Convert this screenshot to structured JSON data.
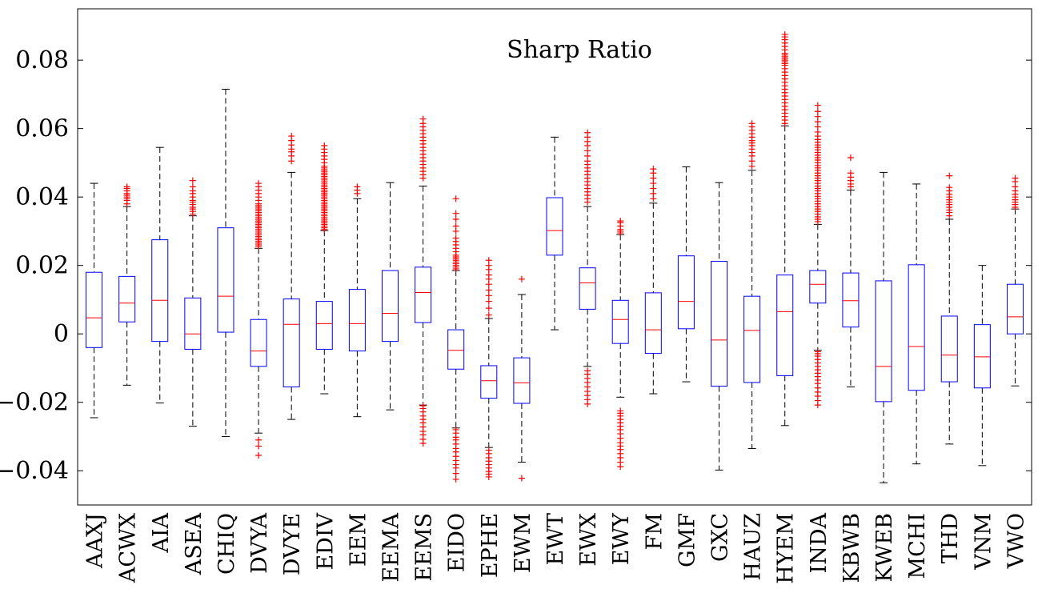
{
  "chart_data": {
    "type": "boxplot",
    "title": "Sharp Ratio",
    "xlabel": "",
    "ylabel": "",
    "ylim": [
      -0.05,
      0.095
    ],
    "yticks": [
      {
        "value": -0.04,
        "label": "−0.04"
      },
      {
        "value": -0.02,
        "label": "−0.02"
      },
      {
        "value": 0,
        "label": "0"
      },
      {
        "value": 0.02,
        "label": "0.02"
      },
      {
        "value": 0.04,
        "label": "0.04"
      },
      {
        "value": 0.06,
        "label": "0.06"
      },
      {
        "value": 0.08,
        "label": "0.08"
      }
    ],
    "colors": {
      "box": "#0000ff",
      "median": "#ff0000",
      "whisker": "#000000",
      "outlier": "#ff0000",
      "axis": "#000000"
    },
    "categories": [
      "AAXJ",
      "ACWX",
      "AIA",
      "ASEA",
      "CHIQ",
      "DVYA",
      "DVYE",
      "EDIV",
      "EEM",
      "EEMA",
      "EEMS",
      "EIDO",
      "EPHE",
      "EWM",
      "EWT",
      "EWX",
      "EWY",
      "FM",
      "GMF",
      "GXC",
      "HAUZ",
      "HYEM",
      "INDA",
      "KBWB",
      "KWEB",
      "MCHI",
      "THD",
      "VNM",
      "VWO"
    ],
    "boxes": [
      {
        "name": "AAXJ",
        "whislo": -0.0245,
        "q1": -0.004,
        "med": 0.0047,
        "q3": 0.018,
        "whishi": 0.044,
        "outliers": []
      },
      {
        "name": "ACWX",
        "whislo": -0.015,
        "q1": 0.0035,
        "med": 0.009,
        "q3": 0.0168,
        "whishi": 0.0372,
        "outliers": [
          0.038,
          0.039,
          0.0395,
          0.04,
          0.0405,
          0.041,
          0.0418,
          0.0425,
          0.043
        ]
      },
      {
        "name": "AIA",
        "whislo": -0.0202,
        "q1": -0.0022,
        "med": 0.0098,
        "q3": 0.0275,
        "whishi": 0.0545,
        "outliers": []
      },
      {
        "name": "ASEA",
        "whislo": -0.027,
        "q1": -0.0045,
        "med": 0.0,
        "q3": 0.0105,
        "whishi": 0.0345,
        "outliers": [
          0.035,
          0.0358,
          0.0365,
          0.037,
          0.0378,
          0.0385,
          0.039,
          0.04,
          0.041,
          0.0418,
          0.043,
          0.0448
        ]
      },
      {
        "name": "CHIQ",
        "whislo": -0.03,
        "q1": 0.0005,
        "med": 0.011,
        "q3": 0.031,
        "whishi": 0.0715,
        "outliers": []
      },
      {
        "name": "DVYA",
        "whislo": -0.029,
        "q1": -0.0095,
        "med": -0.005,
        "q3": 0.0042,
        "whishi": 0.025,
        "outliers": [
          -0.0355,
          -0.0328,
          -0.031,
          0.0255,
          0.026,
          0.0265,
          0.027,
          0.0275,
          0.028,
          0.0285,
          0.029,
          0.0295,
          0.03,
          0.0305,
          0.031,
          0.0315,
          0.032,
          0.0325,
          0.033,
          0.0335,
          0.034,
          0.0345,
          0.035,
          0.0355,
          0.036,
          0.0365,
          0.037,
          0.0375,
          0.038,
          0.039,
          0.04,
          0.041,
          0.042,
          0.043,
          0.044
        ]
      },
      {
        "name": "DVYE",
        "whislo": -0.025,
        "q1": -0.0155,
        "med": 0.0028,
        "q3": 0.0102,
        "whishi": 0.0472,
        "outliers": [
          0.0505,
          0.052,
          0.0532,
          0.054,
          0.0552,
          0.0565,
          0.0578
        ]
      },
      {
        "name": "EDIV",
        "whislo": -0.0175,
        "q1": -0.0045,
        "med": 0.003,
        "q3": 0.0095,
        "whishi": 0.0302,
        "outliers": [
          0.0305,
          0.031,
          0.0315,
          0.032,
          0.0325,
          0.033,
          0.0335,
          0.034,
          0.0345,
          0.035,
          0.0355,
          0.036,
          0.0365,
          0.037,
          0.0375,
          0.038,
          0.0385,
          0.039,
          0.0395,
          0.04,
          0.0405,
          0.041,
          0.0415,
          0.042,
          0.0425,
          0.043,
          0.0435,
          0.044,
          0.0445,
          0.045,
          0.0455,
          0.046,
          0.0465,
          0.047,
          0.0475,
          0.048,
          0.0485,
          0.049,
          0.05,
          0.051,
          0.052,
          0.053,
          0.054,
          0.055
        ]
      },
      {
        "name": "EEM",
        "whislo": -0.0242,
        "q1": -0.005,
        "med": 0.003,
        "q3": 0.013,
        "whishi": 0.0395,
        "outliers": [
          0.041,
          0.042,
          0.043
        ]
      },
      {
        "name": "EEMA",
        "whislo": -0.0222,
        "q1": -0.0022,
        "med": 0.006,
        "q3": 0.0185,
        "whishi": 0.0442,
        "outliers": []
      },
      {
        "name": "EEMS",
        "whislo": -0.0208,
        "q1": 0.0033,
        "med": 0.0121,
        "q3": 0.0195,
        "whishi": 0.0432,
        "outliers": [
          -0.032,
          -0.0308,
          -0.0295,
          -0.0285,
          -0.0272,
          -0.026,
          -0.025,
          -0.024,
          -0.0228,
          -0.0218,
          -0.021,
          0.0455,
          0.0465,
          0.0475,
          0.0485,
          0.0495,
          0.0505,
          0.0515,
          0.0525,
          0.0535,
          0.0545,
          0.0555,
          0.0565,
          0.0575,
          0.0585,
          0.0595,
          0.0605,
          0.0615,
          0.0628
        ]
      },
      {
        "name": "EIDO",
        "whislo": -0.0275,
        "q1": -0.0103,
        "med": -0.0048,
        "q3": 0.0012,
        "whishi": 0.0185,
        "outliers": [
          -0.0425,
          -0.0408,
          -0.0392,
          -0.0382,
          -0.037,
          -0.0358,
          -0.0345,
          -0.0335,
          -0.0322,
          -0.031,
          -0.0302,
          -0.029,
          -0.028,
          0.019,
          0.0195,
          0.02,
          0.0205,
          0.021,
          0.0215,
          0.022,
          0.0225,
          0.023,
          0.024,
          0.025,
          0.026,
          0.027,
          0.028,
          0.03,
          0.0315,
          0.0335,
          0.0352,
          0.0395
        ]
      },
      {
        "name": "EPHE",
        "whislo": -0.0332,
        "q1": -0.0188,
        "med": -0.0137,
        "q3": -0.0093,
        "whishi": 0.0045,
        "outliers": [
          -0.0418,
          -0.041,
          -0.0402,
          -0.0392,
          -0.0382,
          -0.0372,
          -0.0362,
          -0.035,
          -0.034,
          0.0055,
          0.0075,
          0.0095,
          0.0112,
          0.0128,
          0.0145,
          0.016,
          0.0172,
          0.0188,
          0.02,
          0.0215
        ]
      },
      {
        "name": "EWM",
        "whislo": -0.0375,
        "q1": -0.0203,
        "med": -0.0143,
        "q3": -0.007,
        "whishi": 0.0115,
        "outliers": [
          -0.0422,
          0.016
        ]
      },
      {
        "name": "EWT",
        "whislo": 0.0012,
        "q1": 0.023,
        "med": 0.0302,
        "q3": 0.0398,
        "whishi": 0.0575,
        "outliers": []
      },
      {
        "name": "EWX",
        "whislo": -0.0095,
        "q1": 0.0072,
        "med": 0.0149,
        "q3": 0.0193,
        "whishi": 0.0372,
        "outliers": [
          -0.0205,
          -0.0192,
          -0.018,
          -0.0168,
          -0.0155,
          -0.0142,
          -0.013,
          -0.0118,
          -0.0108,
          0.0385,
          0.0395,
          0.0405,
          0.0415,
          0.0425,
          0.0435,
          0.0445,
          0.0455,
          0.0465,
          0.0475,
          0.0485,
          0.0495,
          0.0505,
          0.052,
          0.0535,
          0.055,
          0.0562,
          0.0575,
          0.0588
        ]
      },
      {
        "name": "EWY",
        "whislo": -0.0185,
        "q1": -0.0028,
        "med": 0.0042,
        "q3": 0.0098,
        "whishi": 0.029,
        "outliers": [
          -0.0388,
          -0.0375,
          -0.0362,
          -0.035,
          -0.0338,
          -0.0328,
          -0.0318,
          -0.0305,
          -0.0292,
          -0.028,
          -0.027,
          -0.026,
          -0.025,
          -0.024,
          -0.0232,
          -0.0225,
          0.0295,
          0.03,
          0.0305,
          0.0315,
          0.0325,
          0.033
        ]
      },
      {
        "name": "FM",
        "whislo": -0.0175,
        "q1": -0.0057,
        "med": 0.0012,
        "q3": 0.012,
        "whishi": 0.0382,
        "outliers": [
          0.0395,
          0.041,
          0.0425,
          0.044,
          0.0455,
          0.047,
          0.0482
        ]
      },
      {
        "name": "GMF",
        "whislo": -0.014,
        "q1": 0.0015,
        "med": 0.0095,
        "q3": 0.0228,
        "whishi": 0.0488,
        "outliers": []
      },
      {
        "name": "GXC",
        "whislo": -0.0398,
        "q1": -0.0153,
        "med": -0.0018,
        "q3": 0.0212,
        "whishi": 0.0442,
        "outliers": []
      },
      {
        "name": "HAUZ",
        "whislo": -0.0335,
        "q1": -0.0142,
        "med": 0.001,
        "q3": 0.011,
        "whishi": 0.0478,
        "outliers": [
          0.049,
          0.0505,
          0.052,
          0.053,
          0.054,
          0.055,
          0.0558,
          0.0565,
          0.0575,
          0.0585,
          0.0595,
          0.0605,
          0.0615
        ]
      },
      {
        "name": "HYEM",
        "whislo": -0.0268,
        "q1": -0.0122,
        "med": 0.0065,
        "q3": 0.0172,
        "whishi": 0.0608,
        "outliers": [
          0.0615,
          0.0625,
          0.0635,
          0.0645,
          0.0655,
          0.0665,
          0.0675,
          0.0685,
          0.0695,
          0.0705,
          0.0715,
          0.0725,
          0.0735,
          0.0745,
          0.0755,
          0.0765,
          0.0775,
          0.0785,
          0.079,
          0.0795,
          0.08,
          0.0805,
          0.081,
          0.0815,
          0.082,
          0.083,
          0.084,
          0.085,
          0.086,
          0.0868,
          0.0875
        ]
      },
      {
        "name": "INDA",
        "whislo": -0.0048,
        "q1": 0.009,
        "med": 0.0145,
        "q3": 0.0185,
        "whishi": 0.032,
        "outliers": [
          -0.0208,
          -0.0195,
          -0.0182,
          -0.017,
          -0.0158,
          -0.0145,
          -0.0135,
          -0.0125,
          -0.0115,
          -0.0105,
          -0.0095,
          -0.0085,
          -0.0075,
          -0.0065,
          -0.0058,
          -0.0052,
          0.0328,
          0.0335,
          0.0342,
          0.035,
          0.0358,
          0.0365,
          0.0372,
          0.038,
          0.0388,
          0.0395,
          0.0402,
          0.041,
          0.0418,
          0.0425,
          0.0432,
          0.044,
          0.0448,
          0.0455,
          0.0462,
          0.047,
          0.0478,
          0.0485,
          0.0492,
          0.05,
          0.0508,
          0.0515,
          0.0522,
          0.053,
          0.0538,
          0.0545,
          0.0552,
          0.056,
          0.0568,
          0.0578,
          0.059,
          0.0605,
          0.062,
          0.0635,
          0.065,
          0.0668
        ]
      },
      {
        "name": "KBWB",
        "whislo": -0.0155,
        "q1": 0.002,
        "med": 0.0097,
        "q3": 0.0178,
        "whishi": 0.042,
        "outliers": [
          0.043,
          0.0438,
          0.0448,
          0.0458,
          0.047,
          0.0515
        ]
      },
      {
        "name": "KWEB",
        "whislo": -0.0435,
        "q1": -0.0198,
        "med": -0.0095,
        "q3": 0.0155,
        "whishi": 0.0472,
        "outliers": []
      },
      {
        "name": "MCHI",
        "whislo": -0.038,
        "q1": -0.0165,
        "med": -0.0037,
        "q3": 0.0202,
        "whishi": 0.0438,
        "outliers": []
      },
      {
        "name": "THD",
        "whislo": -0.0322,
        "q1": -0.014,
        "med": -0.0062,
        "q3": 0.0052,
        "whishi": 0.0335,
        "outliers": [
          0.0345,
          0.0355,
          0.0362,
          0.037,
          0.0378,
          0.0385,
          0.0392,
          0.04,
          0.0408,
          0.0418,
          0.0428,
          0.0462
        ]
      },
      {
        "name": "VNM",
        "whislo": -0.0385,
        "q1": -0.0158,
        "med": -0.0067,
        "q3": 0.0027,
        "whishi": 0.02,
        "outliers": []
      },
      {
        "name": "VWO",
        "whislo": -0.0152,
        "q1": 0.0,
        "med": 0.005,
        "q3": 0.0145,
        "whishi": 0.0365,
        "outliers": [
          0.037,
          0.0378,
          0.0385,
          0.0392,
          0.04,
          0.0408,
          0.0418,
          0.043,
          0.0445,
          0.0455
        ]
      }
    ]
  }
}
